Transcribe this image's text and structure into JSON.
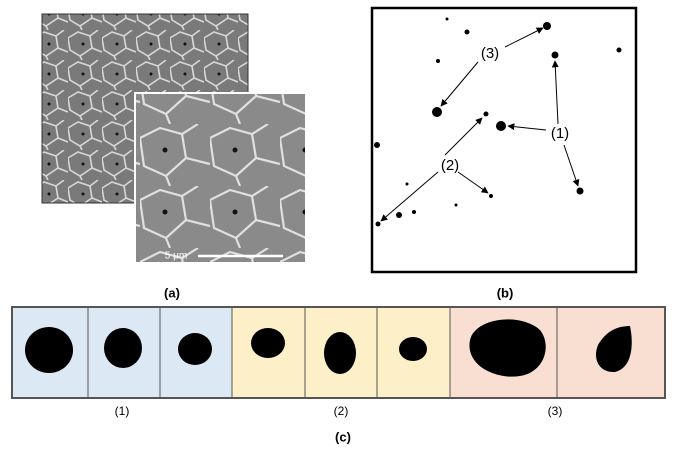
{
  "panel_a": {
    "scale_bar": "5 μm",
    "caption": "(a)"
  },
  "panel_b": {
    "labels": [
      "(3)",
      "(1)",
      "(2)"
    ],
    "caption": "(b)"
  },
  "panel_c": {
    "groups": [
      "(1)",
      "(2)",
      "(3)"
    ],
    "caption": "(c)"
  }
}
